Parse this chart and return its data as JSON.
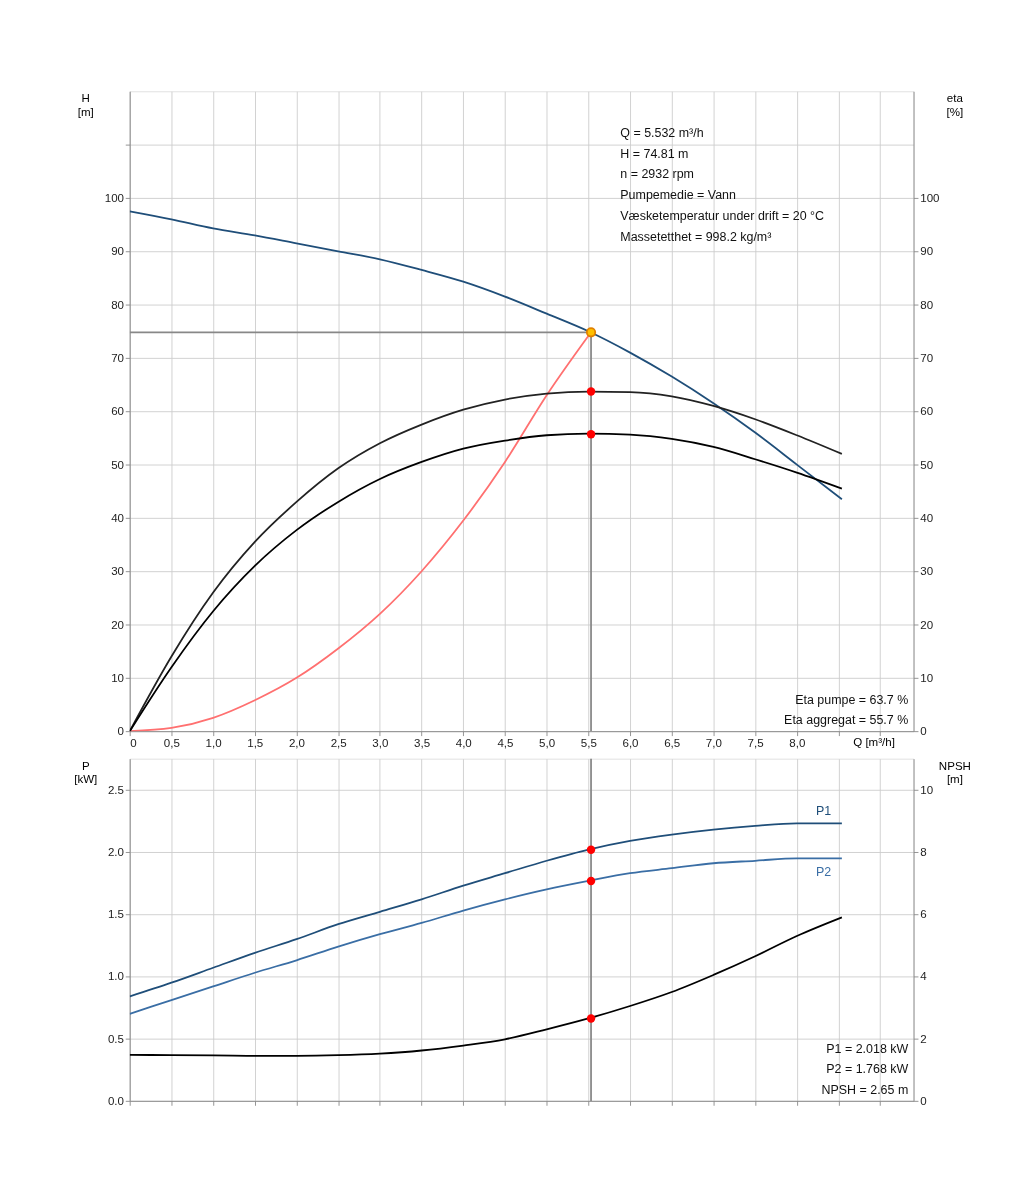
{
  "chart_data": [
    {
      "type": "line",
      "ylabel": "H\n[m]",
      "y2label": "eta\n[%]",
      "xlabel": "Q [m³/h]",
      "x": [
        0,
        0.5,
        1.0,
        1.5,
        2.0,
        2.5,
        3.0,
        3.5,
        4.0,
        4.5,
        5.0,
        5.5,
        6.0,
        6.5,
        7.0,
        7.5,
        8.0,
        8.54
      ],
      "series": [
        {
          "color": "#1f4e79",
          "values": [
            97.5,
            96,
            94.3,
            93,
            91.5,
            90,
            88.5,
            86.5,
            84.3,
            81.5,
            78.3,
            75,
            71,
            66.5,
            61.5,
            56,
            50,
            43.5
          ]
        },
        {
          "color": "#222222",
          "axis": "y2",
          "values": [
            0,
            14,
            26,
            35.5,
            43,
            49.3,
            54,
            57.5,
            60.3,
            62.2,
            63.3,
            63.7,
            63.6,
            62.8,
            61,
            58.5,
            55.5,
            52
          ]
        },
        {
          "color": "#000000",
          "axis": "y2",
          "values": [
            0,
            12,
            22.5,
            31,
            37.7,
            43,
            47.3,
            50.5,
            53,
            54.5,
            55.5,
            55.8,
            55.6,
            54.8,
            53.3,
            51,
            48.5,
            45.5
          ]
        },
        {
          "color": "#ff7070",
          "x": [
            0,
            0.5,
            1.0,
            1.5,
            2.0,
            2.5,
            3.0,
            3.5,
            4.0,
            4.5,
            5.0,
            5.532
          ],
          "values": [
            0,
            0.6,
            2.5,
            5.8,
            10,
            15.5,
            22,
            30,
            39.5,
            50.5,
            63,
            74.81
          ]
        },
        {
          "color": "#888888",
          "x": [
            0,
            5.532
          ],
          "values": [
            74.81,
            74.81
          ]
        },
        {
          "color": "#888888",
          "x": [
            5.532,
            5.532
          ],
          "values": [
            0,
            74.81
          ]
        },
        {
          "type": "scatter",
          "marker": "circle",
          "color": "#ffc000",
          "x": [
            5.532
          ],
          "values": [
            74.81
          ]
        },
        {
          "type": "scatter",
          "marker": "circle",
          "color": "#ff0000",
          "axis": "y2",
          "x": [
            5.532,
            5.532
          ],
          "values": [
            63.7,
            55.7
          ]
        }
      ],
      "xlim": [
        0,
        9.4
      ],
      "ylim": [
        0,
        120
      ],
      "y2lim": [
        0,
        120
      ],
      "xticks": [
        0,
        {
          "value": 0.5,
          "label": "0,5"
        },
        {
          "value": 1.0,
          "label": "1,0"
        },
        {
          "value": 1.5,
          "label": "1,5"
        },
        {
          "value": 2.0,
          "label": "2,0"
        },
        {
          "value": 2.5,
          "label": "2,5"
        },
        {
          "value": 3.0,
          "label": "3,0"
        },
        {
          "value": 3.5,
          "label": "3,5"
        },
        {
          "value": 4.0,
          "label": "4,0"
        },
        {
          "value": 4.5,
          "label": "4,5"
        },
        {
          "value": 5.0,
          "label": "5,0"
        },
        {
          "value": 5.5,
          "label": "5,5"
        },
        {
          "value": 6.0,
          "label": "6,0"
        },
        {
          "value": 6.5,
          "label": "6,5"
        },
        {
          "value": 7.0,
          "label": "7,0"
        },
        {
          "value": 7.5,
          "label": "7,5"
        },
        {
          "value": 8.0,
          "label": "8,0"
        },
        {
          "value": 8.5,
          "label": null
        },
        {
          "value": 9.0,
          "label": null
        }
      ],
      "yticks": [
        0,
        10,
        20,
        30,
        40,
        50,
        60,
        70,
        80,
        90,
        100,
        {
          "value": 110,
          "label": null
        }
      ],
      "y2ticks": [
        0,
        10,
        20,
        30,
        40,
        50,
        60,
        70,
        80,
        90,
        100
      ],
      "grid": true,
      "marker": "none",
      "line_style": "solid",
      "annotations": [
        "Q = 5.532 m³/h",
        "H = 74.81 m",
        "n = 2932 rpm",
        "Pumpemedie = Vann",
        "Væsketemperatur under drift = 20 °C",
        "Massetetthet = 998.2 kg/m³",
        "Eta pumpe = 63.7 %",
        "Eta aggregat = 55.7 %"
      ]
    },
    {
      "type": "line",
      "ylabel": "P\n[kW]",
      "y2label": "NPSH\n[m]",
      "x": [
        0,
        0.5,
        1.0,
        1.5,
        2.0,
        2.5,
        3.0,
        3.5,
        4.0,
        4.5,
        5.0,
        5.5,
        6.0,
        6.5,
        7.0,
        7.5,
        8.0,
        8.54
      ],
      "series": [
        {
          "name": "P1",
          "color": "#1f4e79",
          "values": [
            0.84,
            0.95,
            1.07,
            1.19,
            1.3,
            1.42,
            1.52,
            1.62,
            1.73,
            1.83,
            1.93,
            2.02,
            2.09,
            2.14,
            2.18,
            2.21,
            2.23,
            2.23
          ]
        },
        {
          "name": "P2",
          "color": "#3a6ea5",
          "values": [
            0.7,
            0.81,
            0.92,
            1.03,
            1.13,
            1.24,
            1.34,
            1.43,
            1.53,
            1.62,
            1.7,
            1.768,
            1.83,
            1.87,
            1.91,
            1.93,
            1.95,
            1.95
          ]
        },
        {
          "color": "#000000",
          "axis": "y2",
          "values": [
            1.48,
            1.47,
            1.46,
            1.45,
            1.45,
            1.47,
            1.52,
            1.62,
            1.78,
            1.98,
            2.3,
            2.65,
            3.05,
            3.5,
            4.05,
            4.65,
            5.3,
            5.9
          ]
        },
        {
          "type": "scatter",
          "marker": "circle",
          "color": "#ff0000",
          "x": [
            5.532,
            5.532
          ],
          "values": [
            2.018,
            1.768
          ]
        },
        {
          "type": "scatter",
          "marker": "circle",
          "color": "#ff0000",
          "axis": "y2",
          "x": [
            5.532
          ],
          "values": [
            2.65
          ]
        }
      ],
      "xlim": [
        0,
        9.4
      ],
      "ylim": [
        0,
        2.75
      ],
      "y2lim": [
        0,
        11
      ],
      "xticks": [
        0,
        0.5,
        1.0,
        1.5,
        2.0,
        2.5,
        3.0,
        3.5,
        4.0,
        4.5,
        5.0,
        5.5,
        6.0,
        6.5,
        7.0,
        7.5,
        8.0,
        8.5,
        9.0
      ],
      "yticks": [
        {
          "value": 0,
          "label": "0.0"
        },
        0.5,
        {
          "value": 1.0,
          "label": "1.0"
        },
        1.5,
        {
          "value": 2.0,
          "label": "2.0"
        },
        2.5
      ],
      "y2ticks": [
        0,
        2,
        4,
        6,
        8,
        10
      ],
      "tick_labels": "y",
      "ref_lines": [
        {
          "axis": "x",
          "value": 5.532,
          "color": "#888888"
        }
      ],
      "grid": true,
      "marker": "none",
      "line_style": "solid",
      "annotations": [
        "P1 = 2.018 kW",
        "P2 = 1.768 kW",
        "NPSH = 2.65 m"
      ]
    }
  ]
}
